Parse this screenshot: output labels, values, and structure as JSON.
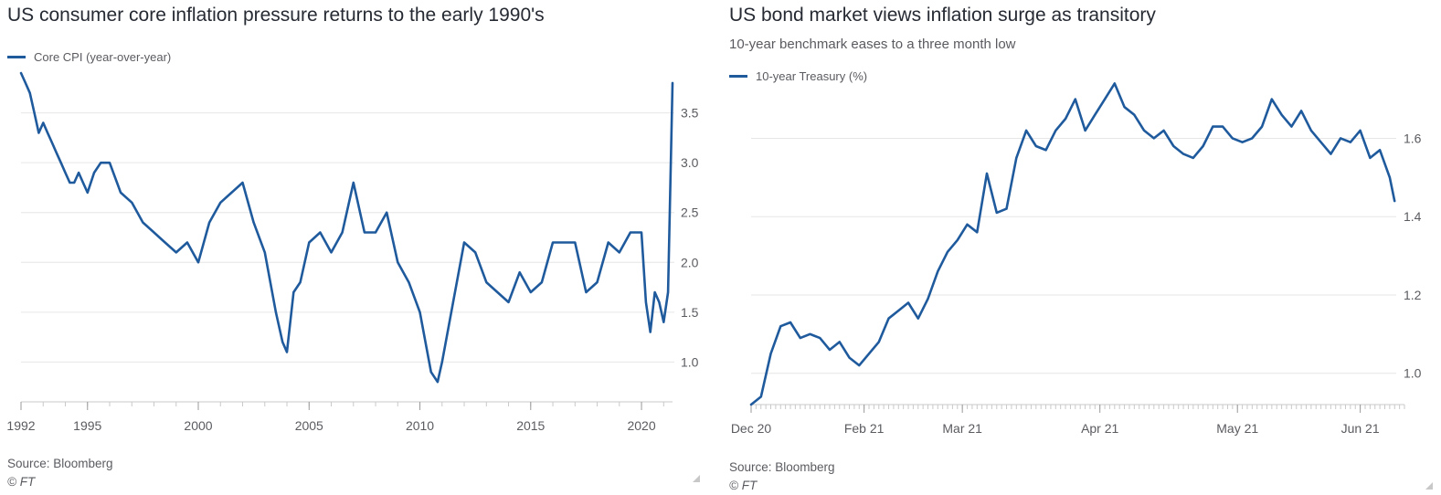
{
  "colors": {
    "line": "#1f5a9d",
    "grid": "#e6e6e6",
    "axis": "#c9c9c9",
    "text": "#5a5b60"
  },
  "left": {
    "title": "US consumer core inflation pressure returns to the early 1990's",
    "legend": "Core CPI (year-over-year)",
    "source": "Source: Bloomberg",
    "copyright": "© FT"
  },
  "right": {
    "title": "US bond market views inflation surge as transitory",
    "subtitle": "10-year benchmark eases to a three month low",
    "legend": "10-year Treasury (%)",
    "source": "Source: Bloomberg",
    "copyright": "© FT"
  },
  "chart_data": [
    {
      "type": "line",
      "title": "US consumer core inflation pressure returns to the early 1990's",
      "xlabel": "",
      "ylabel": "",
      "xlim": [
        1992.0,
        2021.4
      ],
      "ylim": [
        0.6,
        3.9
      ],
      "x_ticks": [
        1992,
        1995,
        2000,
        2005,
        2010,
        2015,
        2020
      ],
      "y_ticks": [
        1.0,
        1.5,
        2.0,
        2.5,
        3.0,
        3.5
      ],
      "grid": "horizontal",
      "legend_position": "top-left",
      "series": [
        {
          "name": "Core CPI (year-over-year)",
          "x": [
            1992.0,
            1992.2,
            1992.4,
            1992.6,
            1992.8,
            1993.0,
            1993.2,
            1993.4,
            1993.6,
            1993.8,
            1994.0,
            1994.2,
            1994.4,
            1994.6,
            1994.8,
            1995.0,
            1995.3,
            1995.6,
            1996.0,
            1996.5,
            1997.0,
            1997.5,
            1998.0,
            1998.5,
            1999.0,
            1999.5,
            2000.0,
            2000.5,
            2001.0,
            2001.5,
            2002.0,
            2002.5,
            2003.0,
            2003.5,
            2003.8,
            2004.0,
            2004.3,
            2004.6,
            2005.0,
            2005.5,
            2006.0,
            2006.5,
            2007.0,
            2007.5,
            2008.0,
            2008.5,
            2009.0,
            2009.5,
            2010.0,
            2010.5,
            2010.8,
            2011.0,
            2011.5,
            2012.0,
            2012.5,
            2013.0,
            2013.5,
            2014.0,
            2014.5,
            2015.0,
            2015.5,
            2016.0,
            2016.5,
            2017.0,
            2017.5,
            2018.0,
            2018.5,
            2019.0,
            2019.5,
            2020.0,
            2020.2,
            2020.4,
            2020.6,
            2020.8,
            2021.0,
            2021.2,
            2021.4
          ],
          "values": [
            3.9,
            3.8,
            3.7,
            3.5,
            3.3,
            3.4,
            3.3,
            3.2,
            3.1,
            3.0,
            2.9,
            2.8,
            2.8,
            2.9,
            2.8,
            2.7,
            2.9,
            3.0,
            3.0,
            2.7,
            2.6,
            2.4,
            2.3,
            2.2,
            2.1,
            2.2,
            2.0,
            2.4,
            2.6,
            2.7,
            2.8,
            2.4,
            2.1,
            1.5,
            1.2,
            1.1,
            1.7,
            1.8,
            2.2,
            2.3,
            2.1,
            2.3,
            2.8,
            2.3,
            2.3,
            2.5,
            2.0,
            1.8,
            1.5,
            0.9,
            0.8,
            1.0,
            1.6,
            2.2,
            2.1,
            1.8,
            1.7,
            1.6,
            1.9,
            1.7,
            1.8,
            2.2,
            2.2,
            2.2,
            1.7,
            1.8,
            2.2,
            2.1,
            2.3,
            2.3,
            1.6,
            1.3,
            1.7,
            1.6,
            1.4,
            1.7,
            3.8
          ]
        }
      ]
    },
    {
      "type": "line",
      "title": "US bond market views inflation surge as transitory",
      "subtitle": "10-year benchmark eases to a three month low",
      "xlabel": "",
      "ylabel": "",
      "xlim": [
        0,
        133
      ],
      "ylim": [
        0.92,
        1.72
      ],
      "x_ticks": [
        {
          "pos": 0,
          "label": "Dec 20"
        },
        {
          "pos": 23,
          "label": "Feb 21"
        },
        {
          "pos": 43,
          "label": "Mar 21"
        },
        {
          "pos": 71,
          "label": "Apr 21"
        },
        {
          "pos": 99,
          "label": "May 21"
        },
        {
          "pos": 124,
          "label": "Jun 21"
        }
      ],
      "y_ticks": [
        1.0,
        1.2,
        1.4,
        1.6
      ],
      "grid": "horizontal",
      "legend_position": "top-left",
      "series": [
        {
          "name": "10-year Treasury (%)",
          "x": [
            0,
            2,
            4,
            6,
            8,
            10,
            12,
            14,
            16,
            18,
            20,
            22,
            24,
            26,
            28,
            30,
            32,
            34,
            36,
            38,
            40,
            42,
            44,
            46,
            48,
            50,
            52,
            54,
            56,
            58,
            60,
            62,
            64,
            66,
            68,
            70,
            72,
            74,
            76,
            78,
            80,
            82,
            84,
            86,
            88,
            90,
            92,
            94,
            96,
            98,
            100,
            102,
            104,
            106,
            108,
            110,
            112,
            114,
            116,
            118,
            120,
            122,
            124,
            126,
            128,
            130,
            131
          ],
          "values": [
            0.92,
            0.94,
            1.05,
            1.12,
            1.13,
            1.09,
            1.1,
            1.09,
            1.06,
            1.08,
            1.04,
            1.02,
            1.05,
            1.08,
            1.14,
            1.16,
            1.18,
            1.14,
            1.19,
            1.26,
            1.31,
            1.34,
            1.38,
            1.36,
            1.51,
            1.41,
            1.42,
            1.55,
            1.62,
            1.58,
            1.57,
            1.62,
            1.65,
            1.7,
            1.62,
            1.66,
            1.7,
            1.74,
            1.68,
            1.66,
            1.62,
            1.6,
            1.62,
            1.58,
            1.56,
            1.55,
            1.58,
            1.63,
            1.63,
            1.6,
            1.59,
            1.6,
            1.63,
            1.7,
            1.66,
            1.63,
            1.67,
            1.62,
            1.59,
            1.56,
            1.6,
            1.59,
            1.62,
            1.55,
            1.57,
            1.5,
            1.44
          ]
        }
      ]
    }
  ]
}
